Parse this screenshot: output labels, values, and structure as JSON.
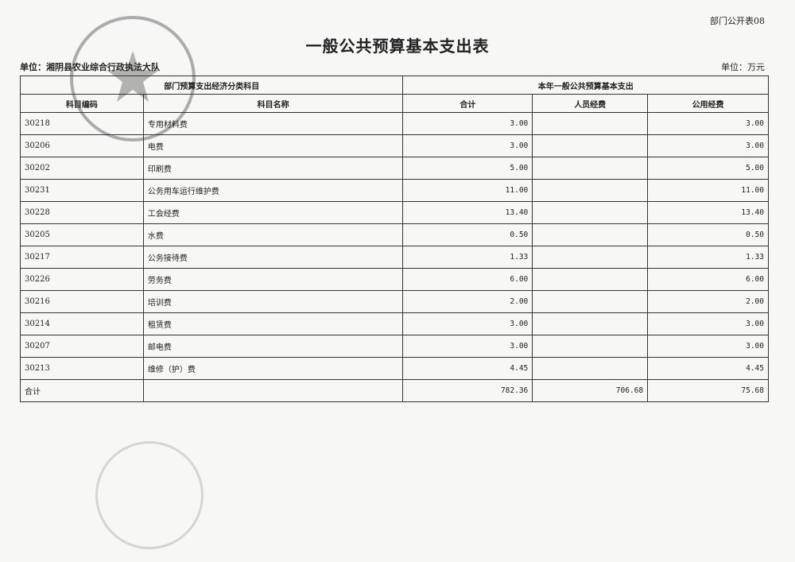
{
  "form_number": "部门公开表08",
  "title": "一般公共预算基本支出表",
  "unit_org": "单位：湘阴县农业综合行政执法大队",
  "unit_currency": "单位：万元",
  "stamp_text": "湘阴县农业综合行政执法大队 4306240004718",
  "headers": {
    "group_left": "部门预算支出经济分类科目",
    "group_right": "本年一般公共预算基本支出",
    "code": "科目编码",
    "name": "科目名称",
    "total": "合计",
    "personnel": "人员经费",
    "public": "公用经费"
  },
  "rows": [
    {
      "code": "30218",
      "name": "专用材料费",
      "total": "3.00",
      "personnel": "",
      "public": "3.00"
    },
    {
      "code": "30206",
      "name": "电费",
      "total": "3.00",
      "personnel": "",
      "public": "3.00"
    },
    {
      "code": "30202",
      "name": "印刷费",
      "total": "5.00",
      "personnel": "",
      "public": "5.00"
    },
    {
      "code": "30231",
      "name": "公务用车运行维护费",
      "total": "11.00",
      "personnel": "",
      "public": "11.00"
    },
    {
      "code": "30228",
      "name": "工会经费",
      "total": "13.40",
      "personnel": "",
      "public": "13.40"
    },
    {
      "code": "30205",
      "name": "水费",
      "total": "0.50",
      "personnel": "",
      "public": "0.50"
    },
    {
      "code": "30217",
      "name": "公务接待费",
      "total": "1.33",
      "personnel": "",
      "public": "1.33"
    },
    {
      "code": "30226",
      "name": "劳务费",
      "total": "6.00",
      "personnel": "",
      "public": "6.00"
    },
    {
      "code": "30216",
      "name": "培训费",
      "total": "2.00",
      "personnel": "",
      "public": "2.00"
    },
    {
      "code": "30214",
      "name": "租赁费",
      "total": "3.00",
      "personnel": "",
      "public": "3.00"
    },
    {
      "code": "30207",
      "name": "邮电费",
      "total": "3.00",
      "personnel": "",
      "public": "3.00"
    },
    {
      "code": "30213",
      "name": "维修（护）费",
      "total": "4.45",
      "personnel": "",
      "public": "4.45"
    }
  ],
  "total_row": {
    "label": "合计",
    "total": "782.36",
    "personnel": "706.68",
    "public": "75.68"
  }
}
